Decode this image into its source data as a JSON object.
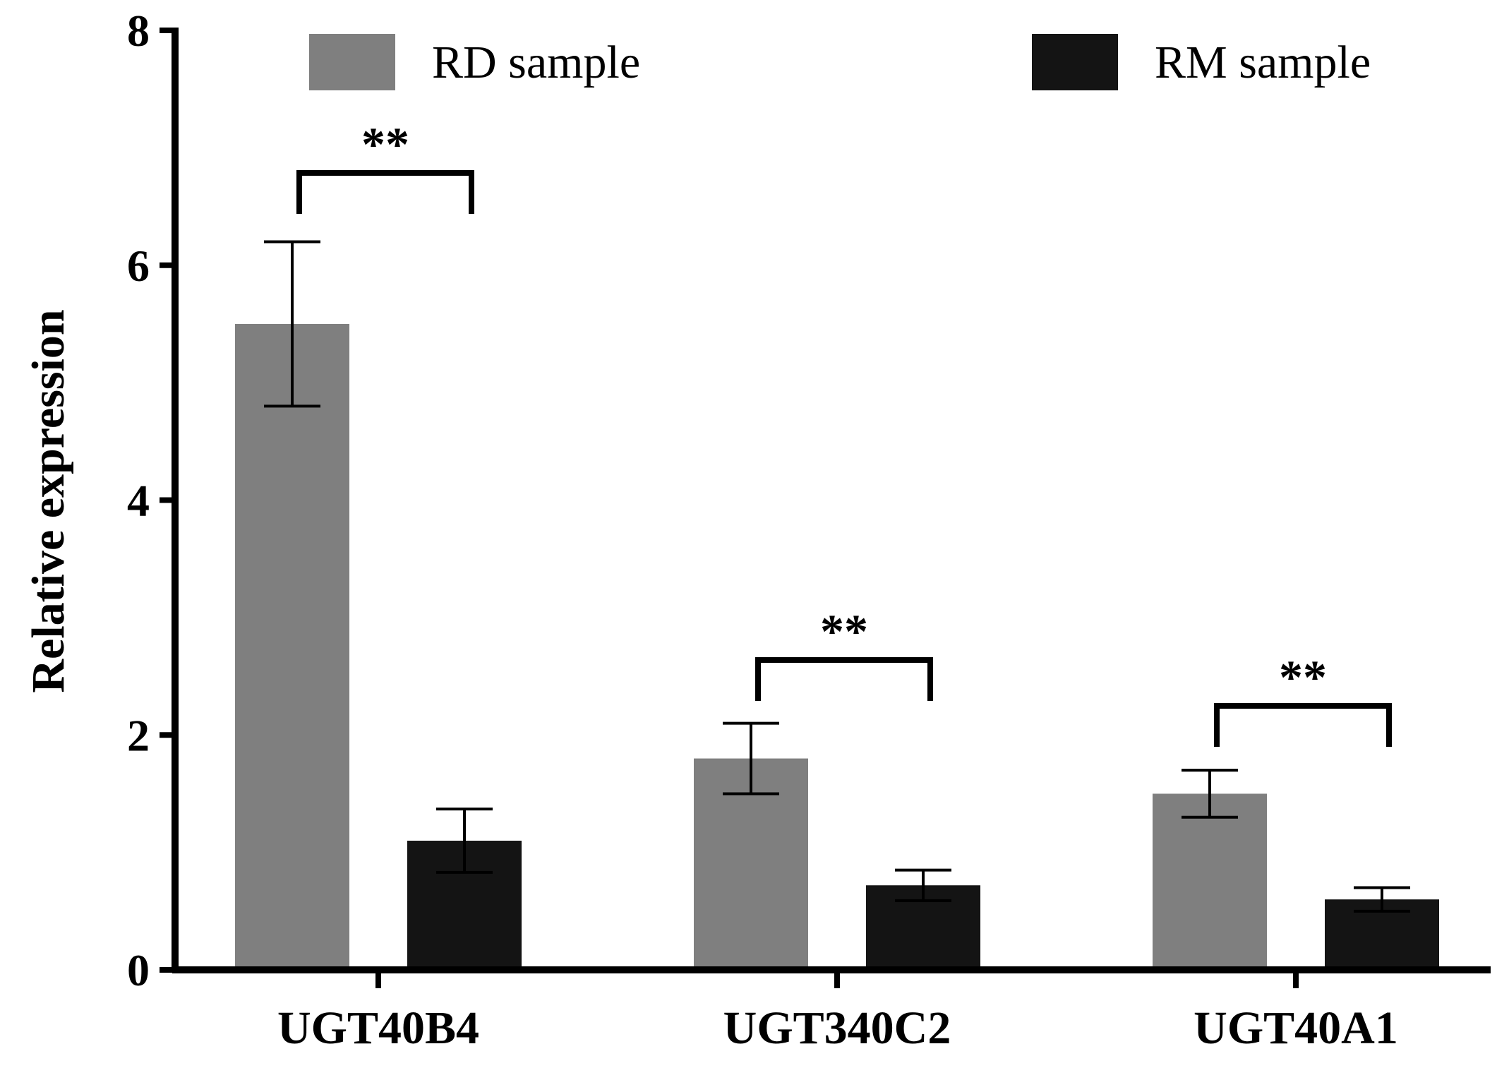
{
  "chart_data": {
    "type": "bar",
    "title": "",
    "xlabel": "",
    "ylabel": "Relative expression",
    "ylim": [
      0,
      8
    ],
    "yticks": [
      0,
      2,
      4,
      6,
      8
    ],
    "categories": [
      "UGT40B4",
      "UGT340C2",
      "UGT40A1"
    ],
    "series": [
      {
        "name": "RD sample",
        "color": "#7f7f7f",
        "values": [
          5.5,
          1.8,
          1.5
        ],
        "errors": [
          0.7,
          0.3,
          0.2
        ]
      },
      {
        "name": "RM sample",
        "color": "#141414",
        "values": [
          1.1,
          0.72,
          0.6
        ],
        "errors": [
          0.27,
          0.13,
          0.1
        ]
      }
    ],
    "significance": [
      {
        "category": "UGT40B4",
        "label": "**"
      },
      {
        "category": "UGT340C2",
        "label": "**"
      },
      {
        "category": "UGT40A1",
        "label": "**"
      }
    ],
    "legend_position": "top",
    "grid": false
  }
}
